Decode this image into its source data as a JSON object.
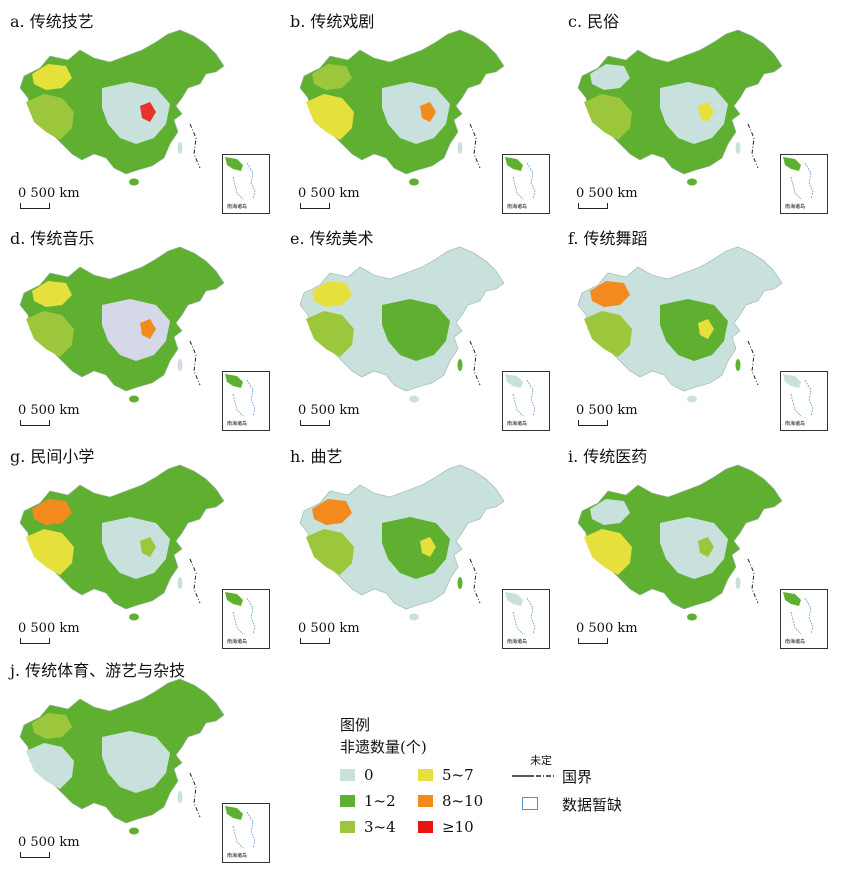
{
  "panels": [
    {
      "title": "a. 传统技艺",
      "scale": "0  500 km",
      "inset": "南海诸岛",
      "colors": {
        "base": "#5fb030",
        "r1": "#c9e1dc",
        "r2": "#9cc63c",
        "r3": "#e6e03c",
        "r4": "#e8322a"
      }
    },
    {
      "title": "b. 传统戏剧",
      "scale": "0  500 km",
      "inset": "南海诸岛",
      "colors": {
        "base": "#5fb030",
        "r1": "#c9e1dc",
        "r2": "#e6e03c",
        "r3": "#9cc63c",
        "r4": "#f28a1e"
      }
    },
    {
      "title": "c. 民俗",
      "scale": "0  500 km",
      "inset": "南海诸岛",
      "colors": {
        "base": "#5fb030",
        "r1": "#c9e1dc",
        "r2": "#9cc63c",
        "r3": "#c9e1dc",
        "r4": "#e6e03c"
      }
    },
    {
      "title": "d. 传统音乐",
      "scale": "0  500 km",
      "inset": "南海诸岛",
      "colors": {
        "base": "#5fb030",
        "r1": "#d4d8e8",
        "r2": "#9cc63c",
        "r3": "#e6e03c",
        "r4": "#f28a1e"
      }
    },
    {
      "title": "e. 传统美术",
      "scale": "0  500 km",
      "inset": "南海诸岛",
      "colors": {
        "base": "#c9e1dc",
        "r1": "#5fb030",
        "r2": "#9cc63c",
        "r3": "#e6e03c",
        "r4": "#5fb030"
      }
    },
    {
      "title": "f. 传统舞蹈",
      "scale": "0  500 km",
      "inset": "南海诸岛",
      "colors": {
        "base": "#c9e1dc",
        "r1": "#5fb030",
        "r2": "#9cc63c",
        "r3": "#f28a1e",
        "r4": "#e6e03c"
      }
    },
    {
      "title": "g. 民间小学",
      "scale": "0  500 km",
      "inset": "南海诸岛",
      "colors": {
        "base": "#5fb030",
        "r1": "#c9e1dc",
        "r2": "#e6e03c",
        "r3": "#f28a1e",
        "r4": "#9cc63c"
      }
    },
    {
      "title": "h. 曲艺",
      "scale": "0  500 km",
      "inset": "南海诸岛",
      "colors": {
        "base": "#c9e1dc",
        "r1": "#5fb030",
        "r2": "#9cc63c",
        "r3": "#f28a1e",
        "r4": "#e6e03c"
      }
    },
    {
      "title": "i. 传统医药",
      "scale": "0  500 km",
      "inset": "南海诸岛",
      "colors": {
        "base": "#5fb030",
        "r1": "#c9e1dc",
        "r2": "#e6e03c",
        "r3": "#c9e1dc",
        "r4": "#9cc63c"
      }
    },
    {
      "title": "j. 传统体育、游艺与杂技",
      "scale": "0  500 km",
      "inset": "南海诸岛",
      "colors": {
        "base": "#5fb030",
        "r1": "#c9e1dc",
        "r2": "#c9e1dc",
        "r3": "#9cc63c",
        "r4": "#c9e1dc"
      }
    }
  ],
  "legend": {
    "title": "图例",
    "subtitle": "非遗数量(个)",
    "items": [
      {
        "label": "0",
        "color": "#c9e1dc"
      },
      {
        "label": "1~2",
        "color": "#5fb030"
      },
      {
        "label": "3~4",
        "color": "#9cc63c"
      },
      {
        "label": "5~7",
        "color": "#e6e03c"
      },
      {
        "label": "8~10",
        "color": "#f28a1e"
      },
      {
        "label": "≥10",
        "color": "#e8140f"
      }
    ],
    "undetermined": "未定",
    "border": "国界",
    "no_data": "数据暂缺",
    "no_data_color": "#5a8fc8"
  }
}
